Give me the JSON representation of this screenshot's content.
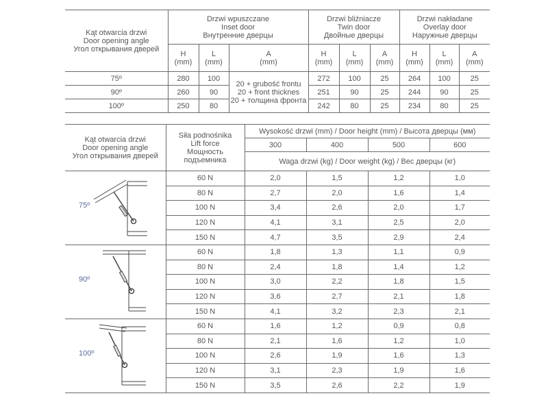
{
  "table1": {
    "angle_header": [
      "Kąt otwarcia drzwi",
      "Door opening angle",
      "Угол открывания дверей"
    ],
    "groups": [
      {
        "lines": [
          "Drzwi wpuszczane",
          "Inset door",
          "Внутренние дверцы"
        ]
      },
      {
        "lines": [
          "Drzwi bliźniacze",
          "Twin door",
          "Двойные дверцы"
        ]
      },
      {
        "lines": [
          "Drzwi nakładane",
          "Overlay door",
          "Наружные дверцы"
        ]
      }
    ],
    "unit": "(mm)",
    "sub": {
      "h": "H",
      "l": "L",
      "a": "A"
    },
    "inset_a": [
      "20 + grubość frontu",
      "20 + front thicknes",
      "20 + толщина фронта"
    ],
    "rows": [
      {
        "angle": "75º",
        "inset_h": "280",
        "inset_l": "100",
        "twin_h": "272",
        "twin_l": "100",
        "twin_a": "25",
        "over_h": "264",
        "over_l": "100",
        "over_a": "25"
      },
      {
        "angle": "90º",
        "inset_h": "260",
        "inset_l": "90",
        "twin_h": "251",
        "twin_l": "90",
        "twin_a": "25",
        "over_h": "244",
        "over_l": "90",
        "over_a": "25"
      },
      {
        "angle": "100º",
        "inset_h": "250",
        "inset_l": "80",
        "twin_h": "242",
        "twin_l": "80",
        "twin_a": "25",
        "over_h": "234",
        "over_l": "80",
        "over_a": "25"
      }
    ]
  },
  "table2": {
    "angle_header": [
      "Kąt otwarcia drzwi",
      "Door opening angle",
      "Угол открывания дверей"
    ],
    "force_header": [
      "Siła podnośnika",
      "Lift force",
      "Мощность",
      "подъемника"
    ],
    "height_header": "Wysokość drzwi (mm) / Door height (mm) / Высота дверцы (мм)",
    "heights": [
      "300",
      "400",
      "500",
      "600"
    ],
    "weight_header": "Waga drzwi (kg) / Door weight (kg) / Вес дверцы (кг)",
    "groups": [
      {
        "angle": "75º",
        "rows": [
          {
            "force": "60 N",
            "w": [
              "2,0",
              "1,5",
              "1,2",
              "1,0"
            ]
          },
          {
            "force": "80 N",
            "w": [
              "2,7",
              "2,0",
              "1,6",
              "1,4"
            ]
          },
          {
            "force": "100 N",
            "w": [
              "3,4",
              "2,6",
              "2,0",
              "1,7"
            ]
          },
          {
            "force": "120 N",
            "w": [
              "4,1",
              "3,1",
              "2,5",
              "2,0"
            ]
          },
          {
            "force": "150 N",
            "w": [
              "4,7",
              "3,5",
              "2,9",
              "2,4"
            ]
          }
        ]
      },
      {
        "angle": "90º",
        "rows": [
          {
            "force": "60 N",
            "w": [
              "1,8",
              "1,3",
              "1,1",
              "0,9"
            ]
          },
          {
            "force": "80 N",
            "w": [
              "2,4",
              "1,8",
              "1,4",
              "1,2"
            ]
          },
          {
            "force": "100 N",
            "w": [
              "3,0",
              "2,2",
              "1,8",
              "1,5"
            ]
          },
          {
            "force": "120 N",
            "w": [
              "3,6",
              "2,7",
              "2,1",
              "1,8"
            ]
          },
          {
            "force": "150 N",
            "w": [
              "4,1",
              "3,2",
              "2,3",
              "2,1"
            ]
          }
        ]
      },
      {
        "angle": "100º",
        "rows": [
          {
            "force": "60 N",
            "w": [
              "1,6",
              "1,2",
              "0,9",
              "0,8"
            ]
          },
          {
            "force": "80 N",
            "w": [
              "2,1",
              "1,6",
              "1,2",
              "1,0"
            ]
          },
          {
            "force": "100 N",
            "w": [
              "2,6",
              "1,9",
              "1,6",
              "1,3"
            ]
          },
          {
            "force": "120 N",
            "w": [
              "3,1",
              "2,3",
              "1,9",
              "1,6"
            ]
          },
          {
            "force": "150 N",
            "w": [
              "3,5",
              "2,6",
              "2,2",
              "1,9"
            ]
          }
        ]
      }
    ],
    "angle_label_color": "#5a6a9a"
  }
}
